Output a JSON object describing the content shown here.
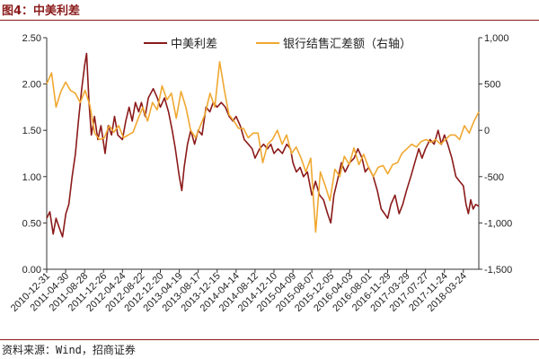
{
  "figure": {
    "title": "图4：中美利差",
    "source": "资料来源：Wind，招商证券"
  },
  "colors": {
    "series_left": "#8b1a1a",
    "series_right": "#f0a830",
    "title": "#8a1a1a"
  },
  "chart_data": {
    "type": "line",
    "legend": {
      "placement": "top-center",
      "entries": [
        "中美利差",
        "银行结售汇差额（右轴）"
      ]
    },
    "grid": false,
    "y_left": {
      "range": [
        0.0,
        2.5
      ],
      "ticks": [
        "0.00",
        "0.50",
        "1.00",
        "1.50",
        "2.00",
        "2.50"
      ]
    },
    "y_right": {
      "range": [
        -1500,
        1000
      ],
      "ticks": [
        "-1,500",
        "-1,000",
        "-500",
        "0",
        "500",
        "1,000"
      ]
    },
    "x_range": [
      "2010-12-31",
      "2018-06-30"
    ],
    "x_ticks": [
      "2010-12-31",
      "2011-04-30",
      "2011-08-28",
      "2011-12-26",
      "2012-04-24",
      "2012-08-22",
      "2012-12-20",
      "2013-04-19",
      "2013-08-17",
      "2013-12-15",
      "2014-04-14",
      "2014-08-12",
      "2014-12-10",
      "2015-04-09",
      "2015-08-07",
      "2015-12-05",
      "2016-04-03",
      "2016-08-01",
      "2016-11-29",
      "2017-03-29",
      "2017-07-27",
      "2017-11-24",
      "2018-03-24"
    ],
    "series": [
      {
        "name": "中美利差",
        "axis": "left",
        "points": [
          [
            "2010-12-31",
            0.55
          ],
          [
            "2011-01-20",
            0.62
          ],
          [
            "2011-02-10",
            0.38
          ],
          [
            "2011-02-28",
            0.55
          ],
          [
            "2011-03-20",
            0.45
          ],
          [
            "2011-04-10",
            0.35
          ],
          [
            "2011-05-01",
            0.6
          ],
          [
            "2011-05-20",
            0.7
          ],
          [
            "2011-06-10",
            1.0
          ],
          [
            "2011-07-01",
            1.25
          ],
          [
            "2011-07-20",
            1.6
          ],
          [
            "2011-08-10",
            1.95
          ],
          [
            "2011-08-28",
            2.2
          ],
          [
            "2011-09-10",
            2.33
          ],
          [
            "2011-09-25",
            1.8
          ],
          [
            "2011-10-10",
            1.45
          ],
          [
            "2011-10-30",
            1.65
          ],
          [
            "2011-11-20",
            1.4
          ],
          [
            "2011-12-10",
            1.55
          ],
          [
            "2012-01-05",
            1.25
          ],
          [
            "2012-01-25",
            1.55
          ],
          [
            "2012-02-15",
            1.45
          ],
          [
            "2012-03-05",
            1.65
          ],
          [
            "2012-03-25",
            1.45
          ],
          [
            "2012-04-24",
            1.4
          ],
          [
            "2012-05-15",
            1.6
          ],
          [
            "2012-06-05",
            1.75
          ],
          [
            "2012-06-25",
            1.6
          ],
          [
            "2012-07-15",
            1.8
          ],
          [
            "2012-08-05",
            1.7
          ],
          [
            "2012-08-22",
            1.8
          ],
          [
            "2012-09-15",
            1.65
          ],
          [
            "2012-10-05",
            1.85
          ],
          [
            "2012-11-05",
            1.95
          ],
          [
            "2012-12-01",
            1.85
          ],
          [
            "2012-12-20",
            1.75
          ],
          [
            "2013-01-15",
            1.85
          ],
          [
            "2013-02-10",
            1.7
          ],
          [
            "2013-03-05",
            1.5
          ],
          [
            "2013-03-25",
            1.3
          ],
          [
            "2013-04-19",
            1.0
          ],
          [
            "2013-05-05",
            0.85
          ],
          [
            "2013-05-20",
            1.1
          ],
          [
            "2013-06-10",
            1.35
          ],
          [
            "2013-07-01",
            1.5
          ],
          [
            "2013-07-25",
            1.35
          ],
          [
            "2013-08-17",
            1.5
          ],
          [
            "2013-09-10",
            1.45
          ],
          [
            "2013-10-05",
            1.75
          ],
          [
            "2013-10-30",
            1.7
          ],
          [
            "2013-11-20",
            1.8
          ],
          [
            "2013-12-15",
            1.75
          ],
          [
            "2014-01-10",
            1.8
          ],
          [
            "2014-02-05",
            1.75
          ],
          [
            "2014-03-01",
            1.65
          ],
          [
            "2014-03-25",
            1.6
          ],
          [
            "2014-04-14",
            1.65
          ],
          [
            "2014-05-10",
            1.55
          ],
          [
            "2014-06-05",
            1.4
          ],
          [
            "2014-07-01",
            1.35
          ],
          [
            "2014-07-25",
            1.3
          ],
          [
            "2014-08-12",
            1.2
          ],
          [
            "2014-09-10",
            1.3
          ],
          [
            "2014-10-05",
            1.35
          ],
          [
            "2014-10-30",
            1.3
          ],
          [
            "2014-11-20",
            1.35
          ],
          [
            "2014-12-10",
            1.25
          ],
          [
            "2015-01-05",
            1.3
          ],
          [
            "2015-02-01",
            1.25
          ],
          [
            "2015-03-01",
            1.35
          ],
          [
            "2015-03-25",
            1.3
          ],
          [
            "2015-04-09",
            1.15
          ],
          [
            "2015-05-01",
            1.05
          ],
          [
            "2015-05-25",
            1.1
          ],
          [
            "2015-06-15",
            1.0
          ],
          [
            "2015-07-10",
            1.05
          ],
          [
            "2015-08-07",
            0.8
          ],
          [
            "2015-08-30",
            0.95
          ],
          [
            "2015-09-25",
            0.8
          ],
          [
            "2015-10-20",
            0.75
          ],
          [
            "2015-11-15",
            0.6
          ],
          [
            "2015-12-05",
            0.5
          ],
          [
            "2015-12-25",
            0.8
          ],
          [
            "2016-01-15",
            0.95
          ],
          [
            "2016-02-10",
            1.15
          ],
          [
            "2016-03-05",
            1.05
          ],
          [
            "2016-04-03",
            1.15
          ],
          [
            "2016-05-01",
            1.2
          ],
          [
            "2016-05-25",
            1.3
          ],
          [
            "2016-06-20",
            1.2
          ],
          [
            "2016-07-10",
            1.05
          ],
          [
            "2016-08-01",
            1.1
          ],
          [
            "2016-08-30",
            1.0
          ],
          [
            "2016-09-25",
            0.85
          ],
          [
            "2016-10-20",
            0.65
          ],
          [
            "2016-11-10",
            0.6
          ],
          [
            "2016-11-29",
            0.55
          ],
          [
            "2016-12-20",
            0.7
          ],
          [
            "2017-01-15",
            0.8
          ],
          [
            "2017-02-10",
            0.6
          ],
          [
            "2017-03-05",
            0.7
          ],
          [
            "2017-03-29",
            0.85
          ],
          [
            "2017-04-25",
            1.0
          ],
          [
            "2017-05-20",
            1.15
          ],
          [
            "2017-06-15",
            1.3
          ],
          [
            "2017-07-05",
            1.2
          ],
          [
            "2017-07-27",
            1.3
          ],
          [
            "2017-08-25",
            1.4
          ],
          [
            "2017-09-20",
            1.35
          ],
          [
            "2017-10-15",
            1.5
          ],
          [
            "2017-11-05",
            1.35
          ],
          [
            "2017-11-24",
            1.45
          ],
          [
            "2017-12-15",
            1.35
          ],
          [
            "2018-01-10",
            1.2
          ],
          [
            "2018-02-05",
            1.0
          ],
          [
            "2018-02-28",
            0.95
          ],
          [
            "2018-03-24",
            0.9
          ],
          [
            "2018-04-10",
            0.7
          ],
          [
            "2018-04-25",
            0.6
          ],
          [
            "2018-05-10",
            0.75
          ],
          [
            "2018-05-25",
            0.65
          ],
          [
            "2018-06-10",
            0.7
          ],
          [
            "2018-06-30",
            0.68
          ]
        ]
      },
      {
        "name": "银行结售汇差额（右轴）",
        "axis": "right",
        "points": [
          [
            "2010-12-31",
            500
          ],
          [
            "2011-01-31",
            620
          ],
          [
            "2011-02-28",
            250
          ],
          [
            "2011-03-31",
            420
          ],
          [
            "2011-04-30",
            520
          ],
          [
            "2011-05-31",
            430
          ],
          [
            "2011-06-30",
            400
          ],
          [
            "2011-07-31",
            300
          ],
          [
            "2011-08-31",
            430
          ],
          [
            "2011-09-30",
            270
          ],
          [
            "2011-10-31",
            -30
          ],
          [
            "2011-11-30",
            -100
          ],
          [
            "2011-12-31",
            -80
          ],
          [
            "2012-01-31",
            50
          ],
          [
            "2012-02-29",
            -20
          ],
          [
            "2012-03-31",
            50
          ],
          [
            "2012-04-30",
            -80
          ],
          [
            "2012-05-31",
            -50
          ],
          [
            "2012-06-30",
            -20
          ],
          [
            "2012-07-31",
            120
          ],
          [
            "2012-08-31",
            250
          ],
          [
            "2012-09-30",
            100
          ],
          [
            "2012-10-31",
            300
          ],
          [
            "2012-11-30",
            220
          ],
          [
            "2012-12-31",
            480
          ],
          [
            "2013-01-31",
            330
          ],
          [
            "2013-02-28",
            400
          ],
          [
            "2013-03-31",
            130
          ],
          [
            "2013-04-30",
            420
          ],
          [
            "2013-05-31",
            250
          ],
          [
            "2013-06-30",
            0
          ],
          [
            "2013-07-31",
            -80
          ],
          [
            "2013-08-31",
            50
          ],
          [
            "2013-09-30",
            180
          ],
          [
            "2013-10-31",
            400
          ],
          [
            "2013-11-30",
            250
          ],
          [
            "2013-12-31",
            740
          ],
          [
            "2014-01-31",
            420
          ],
          [
            "2014-02-28",
            170
          ],
          [
            "2014-03-31",
            100
          ],
          [
            "2014-04-30",
            20
          ],
          [
            "2014-05-31",
            20
          ],
          [
            "2014-06-30",
            -80
          ],
          [
            "2014-07-31",
            -30
          ],
          [
            "2014-08-31",
            -30
          ],
          [
            "2014-09-30",
            -350
          ],
          [
            "2014-10-31",
            -150
          ],
          [
            "2014-11-30",
            -100
          ],
          [
            "2014-12-31",
            0
          ],
          [
            "2015-01-31",
            -150
          ],
          [
            "2015-02-28",
            -50
          ],
          [
            "2015-03-31",
            -250
          ],
          [
            "2015-04-30",
            -180
          ],
          [
            "2015-05-31",
            -300
          ],
          [
            "2015-06-30",
            -450
          ],
          [
            "2015-07-31",
            -300
          ],
          [
            "2015-08-31",
            -1100
          ],
          [
            "2015-09-30",
            -450
          ],
          [
            "2015-10-31",
            -600
          ],
          [
            "2015-11-30",
            -760
          ],
          [
            "2015-12-31",
            -420
          ],
          [
            "2016-01-31",
            -500
          ],
          [
            "2016-02-29",
            -280
          ],
          [
            "2016-03-31",
            -370
          ],
          [
            "2016-04-30",
            -190
          ],
          [
            "2016-05-31",
            -370
          ],
          [
            "2016-06-30",
            -260
          ],
          [
            "2016-07-31",
            -400
          ],
          [
            "2016-08-31",
            -500
          ],
          [
            "2016-09-30",
            -400
          ],
          [
            "2016-10-31",
            -380
          ],
          [
            "2016-11-30",
            -470
          ],
          [
            "2016-12-31",
            -370
          ],
          [
            "2017-01-31",
            -350
          ],
          [
            "2017-02-28",
            -250
          ],
          [
            "2017-03-31",
            -200
          ],
          [
            "2017-04-30",
            -150
          ],
          [
            "2017-05-31",
            -180
          ],
          [
            "2017-06-30",
            -120
          ],
          [
            "2017-07-31",
            -100
          ],
          [
            "2017-08-31",
            -130
          ],
          [
            "2017-09-30",
            -100
          ],
          [
            "2017-10-31",
            -150
          ],
          [
            "2017-11-30",
            -100
          ],
          [
            "2017-12-31",
            -50
          ],
          [
            "2018-01-31",
            -50
          ],
          [
            "2018-02-28",
            -100
          ],
          [
            "2018-03-31",
            50
          ],
          [
            "2018-04-30",
            -30
          ],
          [
            "2018-05-31",
            100
          ],
          [
            "2018-06-30",
            200
          ]
        ]
      }
    ]
  }
}
